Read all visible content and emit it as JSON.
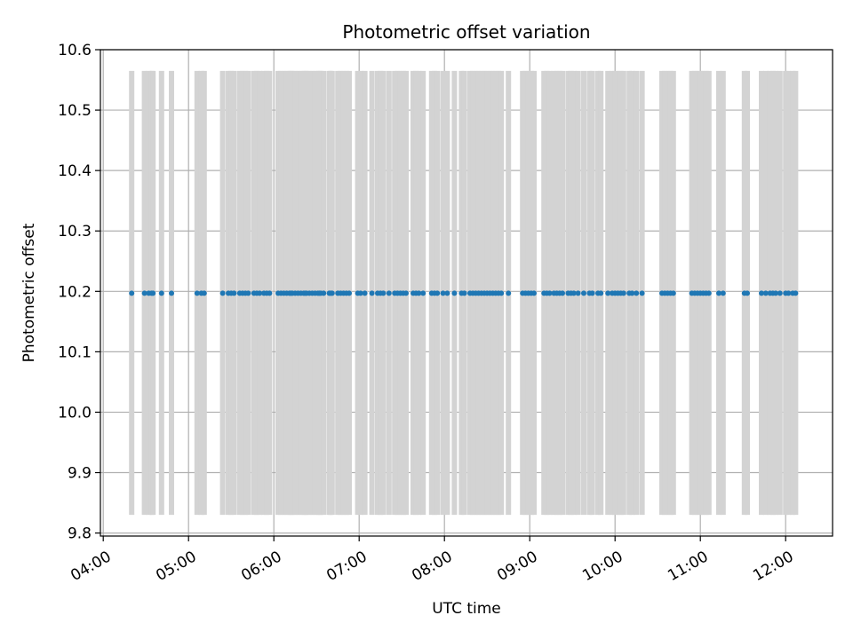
{
  "chart_data": {
    "type": "scatter",
    "title": "Photometric offset variation",
    "xlabel": "UTC time",
    "ylabel": "Photometric offset",
    "x_ticks": [
      "04:00",
      "05:00",
      "06:00",
      "07:00",
      "08:00",
      "09:00",
      "10:00",
      "11:00",
      "12:00"
    ],
    "y_ticks": [
      "9.8",
      "9.9",
      "10.0",
      "10.1",
      "10.2",
      "10.3",
      "10.4",
      "10.5",
      "10.6"
    ],
    "xlim": [
      "03:58",
      "12:33"
    ],
    "ylim": [
      9.795,
      10.6
    ],
    "grid": true,
    "colors": {
      "points": "#1f77b4",
      "errorbars": "#d3d3d3",
      "grid": "#b0b0b0"
    },
    "error_low": 9.83,
    "error_high": 10.565,
    "series": [
      {
        "x": [
          "04:20",
          "04:29",
          "04:32",
          "04:34",
          "04:35",
          "04:41",
          "04:48",
          "05:06",
          "05:09",
          "05:11",
          "05:24",
          "05:28",
          "05:30",
          "05:32",
          "05:36",
          "05:38",
          "05:40",
          "05:42",
          "05:46",
          "05:48",
          "05:50",
          "05:53",
          "05:55",
          "05:57",
          "06:03",
          "06:05",
          "06:07",
          "06:09",
          "06:11",
          "06:12",
          "06:13",
          "06:15",
          "06:17",
          "06:19",
          "06:21",
          "06:22",
          "06:23",
          "06:25",
          "06:27",
          "06:29",
          "06:31",
          "06:32",
          "06:33",
          "06:35",
          "06:39",
          "06:40",
          "06:41",
          "06:45",
          "06:47",
          "06:49",
          "06:51",
          "06:53",
          "06:59",
          "07:01",
          "07:04",
          "07:09",
          "07:13",
          "07:15",
          "07:17",
          "07:21",
          "07:25",
          "07:27",
          "07:29",
          "07:31",
          "07:33",
          "07:38",
          "07:40",
          "07:42",
          "07:45",
          "07:51",
          "07:53",
          "07:55",
          "07:59",
          "08:02",
          "08:07",
          "08:12",
          "08:14",
          "08:18",
          "08:20",
          "08:22",
          "08:24",
          "08:26",
          "08:28",
          "08:30",
          "08:32",
          "08:34",
          "08:36",
          "08:38",
          "08:40",
          "08:45",
          "08:55",
          "08:57",
          "08:59",
          "09:01",
          "09:03",
          "09:10",
          "09:12",
          "09:14",
          "09:17",
          "09:19",
          "09:21",
          "09:23",
          "09:27",
          "09:29",
          "09:31",
          "09:34",
          "09:38",
          "09:42",
          "09:44",
          "09:48",
          "09:50",
          "09:55",
          "09:58",
          "10:00",
          "10:02",
          "10:04",
          "10:06",
          "10:10",
          "10:12",
          "10:15",
          "10:19",
          "10:33",
          "10:35",
          "10:37",
          "10:39",
          "10:41",
          "10:54",
          "10:56",
          "10:58",
          "11:00",
          "11:02",
          "11:04",
          "11:06",
          "11:13",
          "11:16",
          "11:31",
          "11:33",
          "11:43",
          "11:46",
          "11:49",
          "11:51",
          "11:53",
          "11:56",
          "12:00",
          "12:02",
          "12:05",
          "12:07"
        ],
        "y": 10.197
      }
    ]
  }
}
